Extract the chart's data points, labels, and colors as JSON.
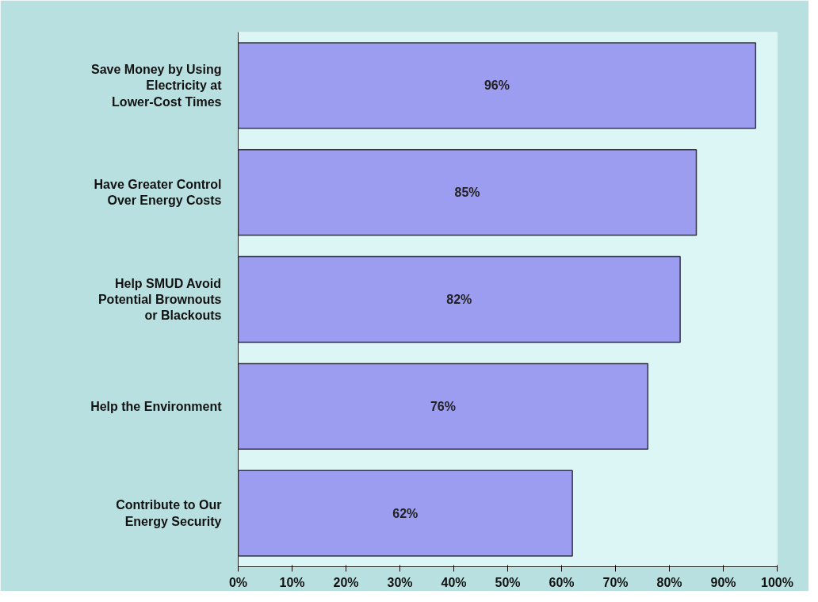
{
  "chart_data": {
    "type": "bar",
    "orientation": "horizontal",
    "categories": [
      "Save Money by Using Electricity at Lower-Cost Times",
      "Have Greater Control Over Energy Costs",
      "Help SMUD Avoid Potential Brownouts or Blackouts",
      "Help the Environment",
      "Contribute to Our Energy Security"
    ],
    "values": [
      96,
      85,
      82,
      76,
      62
    ],
    "color": "#9c9cf0",
    "xlim": [
      0,
      100
    ],
    "xticks": [
      {
        "value": 0,
        "label": "0%"
      },
      {
        "value": 10,
        "label": "10%"
      },
      {
        "value": 20,
        "label": "20%"
      },
      {
        "value": 30,
        "label": "30%"
      },
      {
        "value": 40,
        "label": "40%"
      },
      {
        "value": 50,
        "label": "50%"
      },
      {
        "value": 60,
        "label": "60%"
      },
      {
        "value": 70,
        "label": "70%"
      },
      {
        "value": 80,
        "label": "80%"
      },
      {
        "value": 90,
        "label": "90%"
      },
      {
        "value": 100,
        "label": "100%"
      }
    ],
    "value_labels": [
      "96%",
      "85%",
      "82%",
      "76%",
      "62%"
    ],
    "grid": false
  }
}
